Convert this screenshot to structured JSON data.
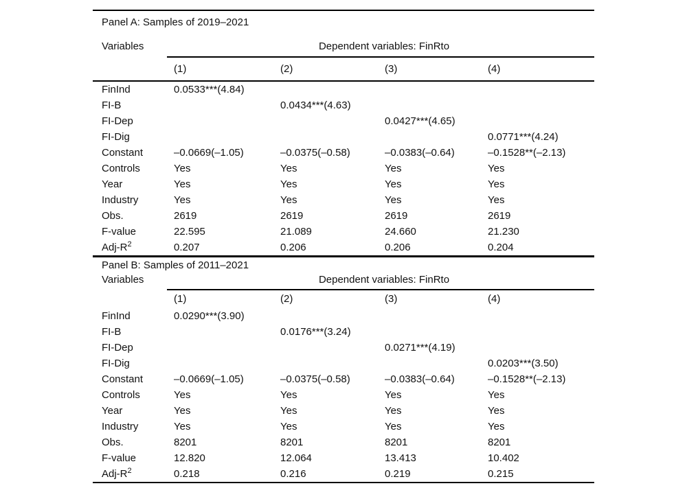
{
  "table": {
    "panels": [
      {
        "title": "Panel A: Samples of 2019–2021",
        "variables_header": "Variables",
        "dep_header": "Dependent variables: FinRto",
        "columns": [
          "(1)",
          "(2)",
          "(3)",
          "(4)"
        ],
        "rows": [
          {
            "label": "FinInd",
            "values": [
              "0.0533***(4.84)",
              "",
              "",
              ""
            ]
          },
          {
            "label": "FI-B",
            "values": [
              "",
              "0.0434***(4.63)",
              "",
              ""
            ]
          },
          {
            "label": "FI-Dep",
            "values": [
              "",
              "",
              "0.0427***(4.65)",
              ""
            ]
          },
          {
            "label": "FI-Dig",
            "values": [
              "",
              "",
              "",
              "0.0771***(4.24)"
            ]
          },
          {
            "label": "Constant",
            "values": [
              "–0.0669(–1.05)",
              "–0.0375(–0.58)",
              "–0.0383(–0.64)",
              "–0.1528**(–2.13)"
            ]
          },
          {
            "label": "Controls",
            "values": [
              "Yes",
              "Yes",
              "Yes",
              "Yes"
            ]
          },
          {
            "label": "Year",
            "values": [
              "Yes",
              "Yes",
              "Yes",
              "Yes"
            ]
          },
          {
            "label": "Industry",
            "values": [
              "Yes",
              "Yes",
              "Yes",
              "Yes"
            ]
          },
          {
            "label": "Obs.",
            "values": [
              "2619",
              "2619",
              "2619",
              "2619"
            ]
          },
          {
            "label": "F-value",
            "values": [
              "22.595",
              "21.089",
              "24.660",
              "21.230"
            ]
          },
          {
            "label": "Adj-R",
            "label_sup": "2",
            "values": [
              "0.207",
              "0.206",
              "0.206",
              "0.204"
            ]
          }
        ]
      },
      {
        "title": "Panel B: Samples of 2011–2021",
        "variables_header": "Variables",
        "dep_header": "Dependent variables: FinRto",
        "columns": [
          "(1)",
          "(2)",
          "(3)",
          "(4)"
        ],
        "rows": [
          {
            "label": "FinInd",
            "values": [
              "0.0290***(3.90)",
              "",
              "",
              ""
            ]
          },
          {
            "label": "FI-B",
            "values": [
              "",
              "0.0176***(3.24)",
              "",
              ""
            ]
          },
          {
            "label": "FI-Dep",
            "values": [
              "",
              "",
              "0.0271***(4.19)",
              ""
            ]
          },
          {
            "label": "FI-Dig",
            "values": [
              "",
              "",
              "",
              "0.0203***(3.50)"
            ]
          },
          {
            "label": "Constant",
            "values": [
              "–0.0669(–1.05)",
              "–0.0375(–0.58)",
              "–0.0383(–0.64)",
              "–0.1528**(–2.13)"
            ]
          },
          {
            "label": "Controls",
            "values": [
              "Yes",
              "Yes",
              "Yes",
              "Yes"
            ]
          },
          {
            "label": "Year",
            "values": [
              "Yes",
              "Yes",
              "Yes",
              "Yes"
            ]
          },
          {
            "label": "Industry",
            "values": [
              "Yes",
              "Yes",
              "Yes",
              "Yes"
            ]
          },
          {
            "label": "Obs.",
            "values": [
              "8201",
              "8201",
              "8201",
              "8201"
            ]
          },
          {
            "label": "F-value",
            "values": [
              "12.820",
              "12.064",
              "13.413",
              "10.402"
            ]
          },
          {
            "label": "Adj-R",
            "label_sup": "2",
            "values": [
              "0.218",
              "0.216",
              "0.219",
              "0.215"
            ]
          }
        ]
      }
    ]
  }
}
